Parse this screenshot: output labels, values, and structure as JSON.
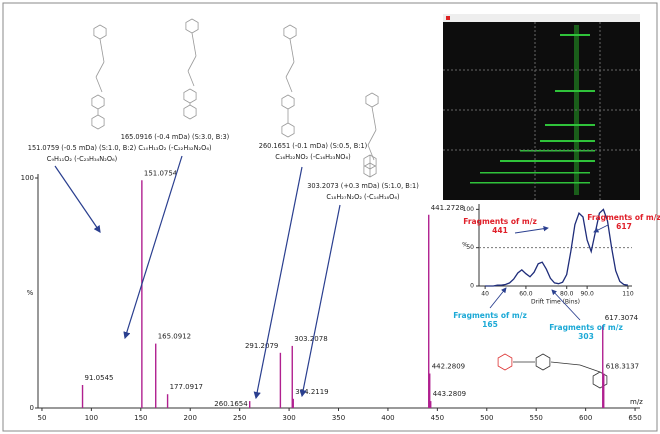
{
  "chart_data": [
    {
      "type": "stem",
      "color": "#b0208f",
      "x_label": "m/z",
      "y_label": "%",
      "x": [
        91.0545,
        151.0754,
        165.0912,
        177.0917,
        260.1654,
        291.2079,
        303.2078,
        304.2119,
        441.2728,
        442.2809,
        443.2809,
        617.3074,
        618.3137
      ],
      "values": [
        10,
        99,
        28,
        6,
        3,
        24,
        27,
        4,
        84,
        15,
        3,
        36,
        15
      ],
      "xlim": [
        46,
        655
      ],
      "xticks": [
        50,
        100,
        150,
        200,
        250,
        300,
        350,
        400,
        450,
        500,
        550,
        600,
        650
      ],
      "ylim": [
        0,
        100
      ],
      "yticks": [
        0,
        100
      ],
      "annotations": [
        {
          "mass": "151.0759 (-0.5 mDa) (S:1.0, B:2)",
          "formula": "C₉H₁₁O₂ (-C₂₃H₃₄N₂O₆)"
        },
        {
          "mass": "165.0916 (-0.4 mDa) (S:3.0, B:3)",
          "formula": "C₁₀H₁₃O₂ (-C₂₂H₃₂N₂O₆)"
        },
        {
          "mass": "260.1651 (-0.1 mDa) (S:0.5, B:1)",
          "formula": "C₁₆H₂₂NO₂ (-C₁₆H₂₃NO₆)"
        },
        {
          "mass": "303.2073 (+0.3 mDa) (S:1.0, B:1)",
          "formula": "C₁₈H₂₇N₂O₂ (-C₁₄H₁₈O₆)"
        }
      ]
    },
    {
      "type": "line",
      "color": "#1f2d7a",
      "x_label": "Drift Time (Bins)",
      "y_label": "%",
      "x": [
        40,
        42,
        44,
        46,
        48,
        50,
        52,
        54,
        56,
        58,
        60,
        62,
        64,
        66,
        68,
        70,
        72,
        74,
        76,
        78,
        80,
        82,
        84,
        86,
        88,
        90,
        92,
        94,
        96,
        98,
        100,
        102,
        104,
        106,
        108,
        110
      ],
      "values": [
        0,
        0,
        0,
        1,
        1,
        2,
        4,
        9,
        17,
        21,
        16,
        12,
        18,
        29,
        31,
        22,
        10,
        4,
        3,
        5,
        15,
        45,
        80,
        95,
        90,
        60,
        45,
        70,
        95,
        100,
        85,
        50,
        20,
        6,
        2,
        1
      ],
      "xlim": [
        37,
        112
      ],
      "xticks": [
        40,
        {
          "value": 60,
          "label": "60.0"
        },
        {
          "value": 80,
          "label": "80.0"
        },
        {
          "value": 90,
          "label": "90.0"
        },
        110
      ],
      "ylim": [
        0,
        107
      ],
      "yticks": [
        0,
        50,
        100
      ],
      "annotations": [
        {
          "lines": [
            "Fragments of m/z",
            "441"
          ],
          "color": "#e0202a"
        },
        {
          "lines": [
            "Fragments of m/z",
            "617"
          ],
          "color": "#e0202a"
        },
        {
          "lines": [
            "Fragments of m/z",
            "165"
          ],
          "color": "#1ca9d6"
        },
        {
          "lines": [
            "Fragments of m/z",
            "303"
          ],
          "color": "#1ca9d6"
        }
      ]
    }
  ]
}
